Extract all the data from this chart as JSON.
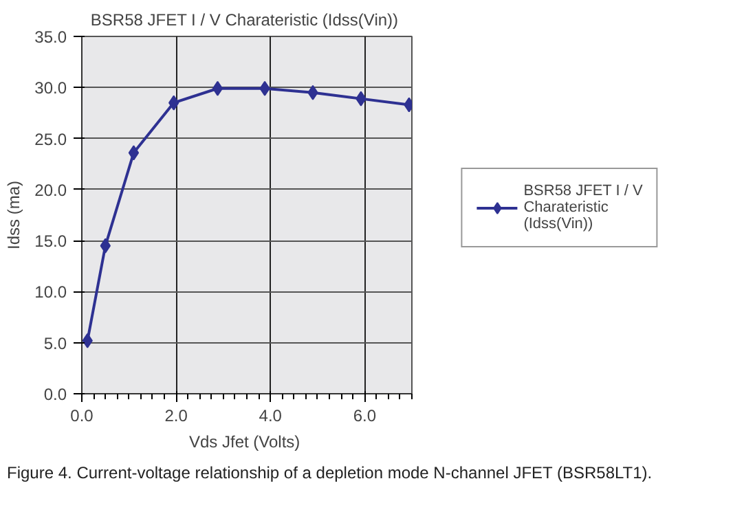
{
  "chart_data": {
    "type": "line",
    "title": "BSR58 JFET I / V Charateristic  (Idss(Vin))",
    "xlabel": "Vds Jfet  (Volts)",
    "ylabel": "Idss (ma)",
    "x": [
      0.12,
      0.5,
      1.1,
      1.95,
      2.88,
      3.88,
      4.9,
      5.92,
      6.94
    ],
    "series": [
      {
        "name": "BSR58 JFET I / V Charateristic  (Idss(Vin))",
        "color": "#2e3192",
        "values": [
          5.2,
          14.5,
          23.6,
          28.5,
          29.9,
          29.9,
          29.5,
          28.9,
          28.3
        ]
      }
    ],
    "xlim": [
      0,
      7
    ],
    "ylim": [
      0,
      35
    ],
    "xticks": [
      {
        "value": 0,
        "label": "0.0"
      },
      {
        "value": 2,
        "label": "2.0"
      },
      {
        "value": 4,
        "label": "4.0"
      },
      {
        "value": 6,
        "label": "6.0"
      }
    ],
    "yticks": [
      {
        "value": 0,
        "label": "0.0"
      },
      {
        "value": 5,
        "label": "5.0"
      },
      {
        "value": 10,
        "label": "10.0"
      },
      {
        "value": 15,
        "label": "15.0"
      },
      {
        "value": 20,
        "label": "20.0"
      },
      {
        "value": 25,
        "label": "25.0"
      },
      {
        "value": 30,
        "label": "30.0"
      },
      {
        "value": 35,
        "label": "35.0"
      }
    ],
    "grid": true,
    "legend": "right",
    "marker": "diamond",
    "line_style": "solid",
    "annotations": [
      "Figure 4. Current-voltage relationship of a depletion mode N-channel JFET (BSR58LT1)."
    ]
  }
}
